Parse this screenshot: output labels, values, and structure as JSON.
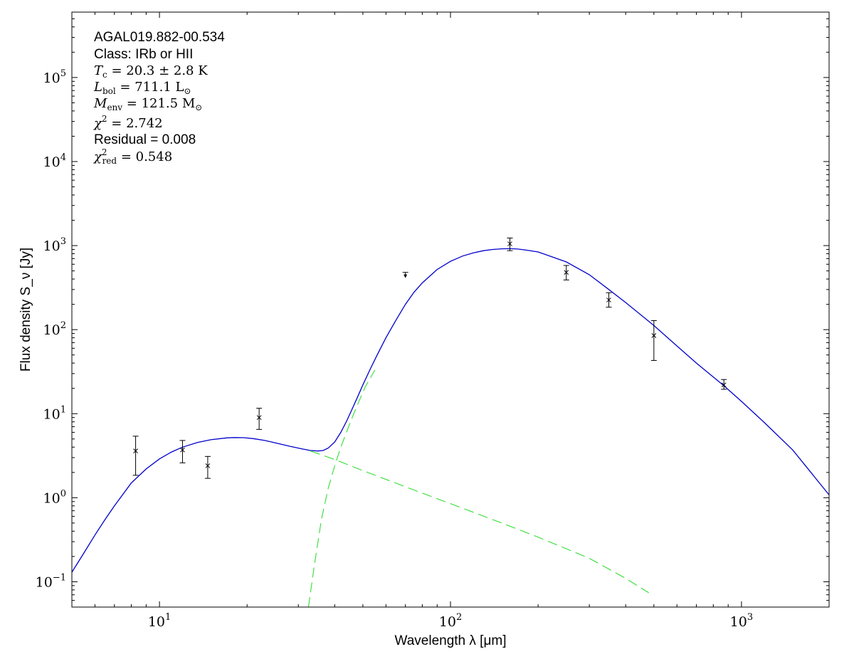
{
  "chart_data": {
    "type": "scatter",
    "xscale": "log",
    "yscale": "log",
    "xlim": [
      5,
      2000
    ],
    "ylim": [
      0.05,
      600000
    ],
    "grid": false,
    "xlabel": "Wavelength λ [μm]",
    "ylabel": "Flux density S_ν [Jy]",
    "x_ticks": [
      {
        "value": 10,
        "mantissa": "10",
        "exp": "1"
      },
      {
        "value": 100,
        "mantissa": "10",
        "exp": "2"
      },
      {
        "value": 1000,
        "mantissa": "10",
        "exp": "3"
      }
    ],
    "y_ticks": [
      {
        "value": 0.1,
        "mantissa": "10",
        "exp": "−1"
      },
      {
        "value": 1,
        "mantissa": "10",
        "exp": "0"
      },
      {
        "value": 10,
        "mantissa": "10",
        "exp": "1"
      },
      {
        "value": 100,
        "mantissa": "10",
        "exp": "2"
      },
      {
        "value": 1000,
        "mantissa": "10",
        "exp": "3"
      },
      {
        "value": 10000,
        "mantissa": "10",
        "exp": "4"
      },
      {
        "value": 100000,
        "mantissa": "10",
        "exp": "5"
      }
    ],
    "annotations": {
      "source_name": "AGAL019.882-00.534",
      "class": "Class: IRb or HII",
      "tc_label": "T",
      "tc_sub": "c",
      "tc_value": " = 20.3 ± 2.8 K",
      "lbol_label": "L",
      "lbol_sub": "bol",
      "lbol_value": " = 711.1 L",
      "lbol_unit_sub": "⊙",
      "menv_label": "M",
      "menv_sub": "env",
      "menv_value": " = 121.5 M",
      "menv_unit_sub": "⊙",
      "chi2_label": "χ",
      "chi2_sup": "2",
      "chi2_value": " = 2.742",
      "residual": "Residual = 0.008",
      "chi2red_label": "χ",
      "chi2red_sup": "2",
      "chi2red_sub": "red",
      "chi2red_value": " = 0.548"
    },
    "points": [
      {
        "x": 8.28,
        "y": 3.6,
        "ylo": 1.85,
        "yhi": 5.4
      },
      {
        "x": 12.0,
        "y": 3.7,
        "ylo": 2.6,
        "yhi": 4.8
      },
      {
        "x": 14.65,
        "y": 2.4,
        "ylo": 1.7,
        "yhi": 3.1
      },
      {
        "x": 22.0,
        "y": 9.0,
        "ylo": 6.5,
        "yhi": 11.6
      },
      {
        "x": 160,
        "y": 1050,
        "ylo": 870,
        "yhi": 1230
      },
      {
        "x": 250,
        "y": 480,
        "ylo": 390,
        "yhi": 580
      },
      {
        "x": 350,
        "y": 225,
        "ylo": 185,
        "yhi": 275
      },
      {
        "x": 500,
        "y": 85,
        "ylo": 43,
        "yhi": 128
      },
      {
        "x": 870,
        "y": 22,
        "ylo": 19.5,
        "yhi": 25.5
      }
    ],
    "upper_limits": [
      {
        "x": 70,
        "y": 480,
        "arrow_to": 420
      }
    ],
    "series": [
      {
        "name": "",
        "style": "solid",
        "color": "#0000cc",
        "points": [
          [
            5,
            0.13
          ],
          [
            5.5,
            0.22
          ],
          [
            6,
            0.36
          ],
          [
            6.5,
            0.55
          ],
          [
            7,
            0.8
          ],
          [
            8,
            1.5
          ],
          [
            9,
            2.2
          ],
          [
            10,
            2.9
          ],
          [
            11,
            3.5
          ],
          [
            12,
            4.0
          ],
          [
            13.5,
            4.55
          ],
          [
            15,
            4.9
          ],
          [
            17,
            5.15
          ],
          [
            18,
            5.2
          ],
          [
            19.5,
            5.18
          ],
          [
            21,
            5.05
          ],
          [
            23,
            4.8
          ],
          [
            25,
            4.5
          ],
          [
            28,
            4.1
          ],
          [
            31,
            3.8
          ],
          [
            33,
            3.65
          ],
          [
            35,
            3.6
          ],
          [
            36.5,
            3.65
          ],
          [
            38,
            3.9
          ],
          [
            40,
            4.6
          ],
          [
            42,
            6.0
          ],
          [
            44,
            8.2
          ],
          [
            46,
            11.5
          ],
          [
            48,
            16
          ],
          [
            50,
            22
          ],
          [
            53,
            34
          ],
          [
            56,
            50
          ],
          [
            60,
            80
          ],
          [
            65,
            130
          ],
          [
            70,
            200
          ],
          [
            75,
            280
          ],
          [
            80,
            360
          ],
          [
            90,
            520
          ],
          [
            100,
            650
          ],
          [
            110,
            750
          ],
          [
            120,
            820
          ],
          [
            130,
            870
          ],
          [
            140,
            900
          ],
          [
            150,
            915
          ],
          [
            160,
            920
          ],
          [
            170,
            910
          ],
          [
            180,
            890
          ],
          [
            200,
            840
          ],
          [
            250,
            640
          ],
          [
            300,
            450
          ],
          [
            350,
            300
          ],
          [
            400,
            210
          ],
          [
            500,
            112
          ],
          [
            600,
            64
          ],
          [
            700,
            40
          ],
          [
            870,
            21.5
          ],
          [
            1000,
            14
          ],
          [
            1200,
            7.8
          ],
          [
            1500,
            3.7
          ],
          [
            2000,
            1.08
          ]
        ]
      },
      {
        "name": "",
        "style": "dashed",
        "color": "#33dd33",
        "points": [
          [
            33,
            3.6
          ],
          [
            40,
            2.85
          ],
          [
            50,
            2.1
          ],
          [
            70,
            1.35
          ],
          [
            100,
            0.85
          ],
          [
            150,
            0.5
          ],
          [
            200,
            0.34
          ],
          [
            300,
            0.19
          ],
          [
            400,
            0.11
          ],
          [
            450,
            0.085
          ],
          [
            480,
            0.074
          ]
        ]
      },
      {
        "name": "",
        "style": "dashed",
        "color": "#33dd33",
        "points": [
          [
            32.5,
            0.05
          ],
          [
            34,
            0.15
          ],
          [
            36,
            0.55
          ],
          [
            38,
            1.3
          ],
          [
            40,
            2.4
          ],
          [
            42,
            4.0
          ],
          [
            45,
            7.5
          ],
          [
            48,
            13
          ],
          [
            51,
            21
          ],
          [
            55,
            33
          ]
        ]
      }
    ]
  }
}
